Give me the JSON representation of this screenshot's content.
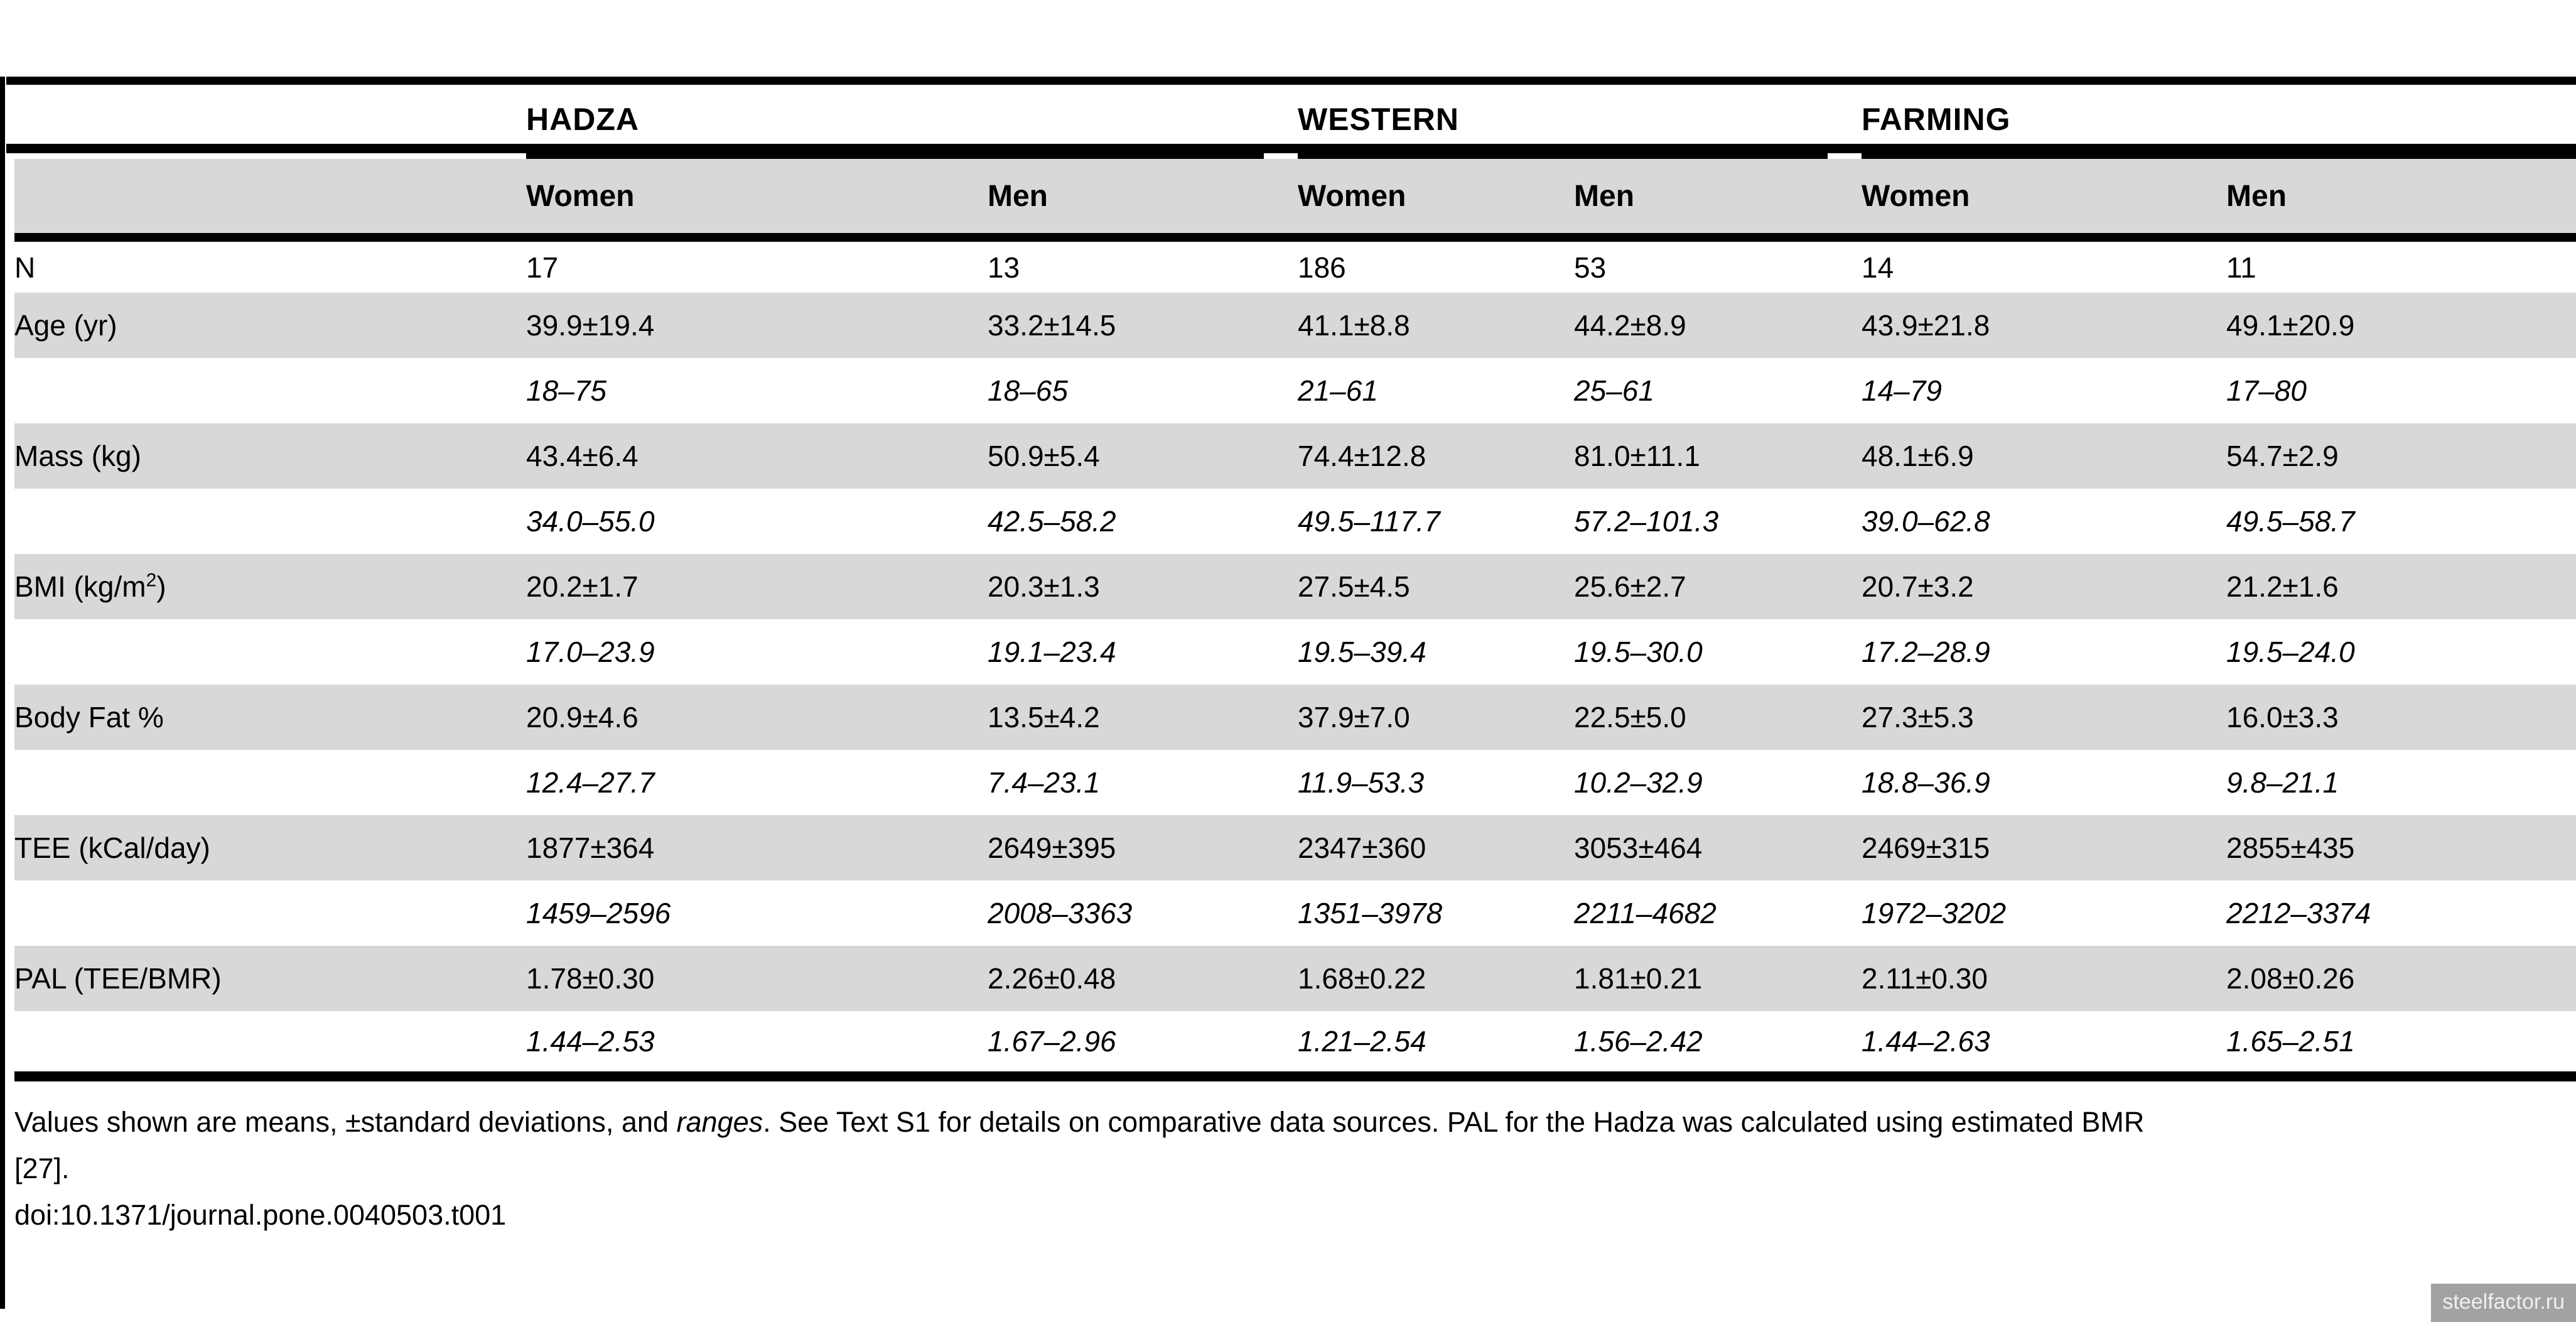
{
  "colors": {
    "row_shade": "#d8d8d8",
    "rule": "#000000",
    "watermark_bg": "#a2a2a2",
    "watermark_text": "#efefef"
  },
  "table": {
    "groups": [
      {
        "label": "HADZA"
      },
      {
        "label": "WESTERN"
      },
      {
        "label": "FARMING"
      }
    ],
    "subheaders": [
      "Women",
      "Men",
      "Women",
      "Men",
      "Women",
      "Men"
    ],
    "rows": [
      {
        "label": "N",
        "shaded": false,
        "italic": false,
        "values": [
          "17",
          "13",
          "186",
          "53",
          "14",
          "11"
        ]
      },
      {
        "label": "Age (yr)",
        "shaded": true,
        "italic": false,
        "values": [
          "39.9±19.4",
          "33.2±14.5",
          "41.1±8.8",
          "44.2±8.9",
          "43.9±21.8",
          "49.1±20.9"
        ]
      },
      {
        "label": "",
        "shaded": false,
        "italic": true,
        "values": [
          "18–75",
          "18–65",
          "21–61",
          "25–61",
          "14–79",
          "17–80"
        ]
      },
      {
        "label": "Mass (kg)",
        "shaded": true,
        "italic": false,
        "values": [
          "43.4±6.4",
          "50.9±5.4",
          "74.4±12.8",
          "81.0±11.1",
          "48.1±6.9",
          "54.7±2.9"
        ]
      },
      {
        "label": "",
        "shaded": false,
        "italic": true,
        "values": [
          "34.0–55.0",
          "42.5–58.2",
          "49.5–117.7",
          "57.2–101.3",
          "39.0–62.8",
          "49.5–58.7"
        ]
      },
      {
        "label": "BMI (kg/m",
        "label_sup": "2",
        "label_post": ")",
        "shaded": true,
        "italic": false,
        "values": [
          "20.2±1.7",
          "20.3±1.3",
          "27.5±4.5",
          "25.6±2.7",
          "20.7±3.2",
          "21.2±1.6"
        ]
      },
      {
        "label": "",
        "shaded": false,
        "italic": true,
        "values": [
          "17.0–23.9",
          "19.1–23.4",
          "19.5–39.4",
          "19.5–30.0",
          "17.2–28.9",
          "19.5–24.0"
        ]
      },
      {
        "label": "Body Fat %",
        "shaded": true,
        "italic": false,
        "values": [
          "20.9±4.6",
          "13.5±4.2",
          "37.9±7.0",
          "22.5±5.0",
          "27.3±5.3",
          "16.0±3.3"
        ]
      },
      {
        "label": "",
        "shaded": false,
        "italic": true,
        "values": [
          "12.4–27.7",
          "7.4–23.1",
          "11.9–53.3",
          "10.2–32.9",
          "18.8–36.9",
          "9.8–21.1"
        ]
      },
      {
        "label": "TEE (kCal/day)",
        "shaded": true,
        "italic": false,
        "values": [
          "1877±364",
          "2649±395",
          "2347±360",
          "3053±464",
          "2469±315",
          "2855±435"
        ]
      },
      {
        "label": "",
        "shaded": false,
        "italic": true,
        "values": [
          "1459–2596",
          "2008–3363",
          "1351–3978",
          "2211–4682",
          "1972–3202",
          "2212–3374"
        ]
      },
      {
        "label": "PAL (TEE/BMR)",
        "shaded": true,
        "italic": false,
        "values": [
          "1.78±0.30",
          "2.26±0.48",
          "1.68±0.22",
          "1.81±0.21",
          "2.11±0.30",
          "2.08±0.26"
        ]
      },
      {
        "label": "",
        "shaded": false,
        "italic": true,
        "values": [
          "1.44–2.53",
          "1.67–2.96",
          "1.21–2.54",
          "1.56–2.42",
          "1.44–2.63",
          "1.65–2.51"
        ]
      }
    ]
  },
  "footnote": {
    "line1_pre": "Values shown are means, ±standard deviations, and ",
    "line1_italic": "ranges",
    "line1_post": ". See Text S1 for details on comparative data sources. PAL for the Hadza was calculated using estimated BMR",
    "line2": "[27].",
    "doi": "doi:10.1371/journal.pone.0040503.t001"
  },
  "watermark": "steelfactor.ru"
}
